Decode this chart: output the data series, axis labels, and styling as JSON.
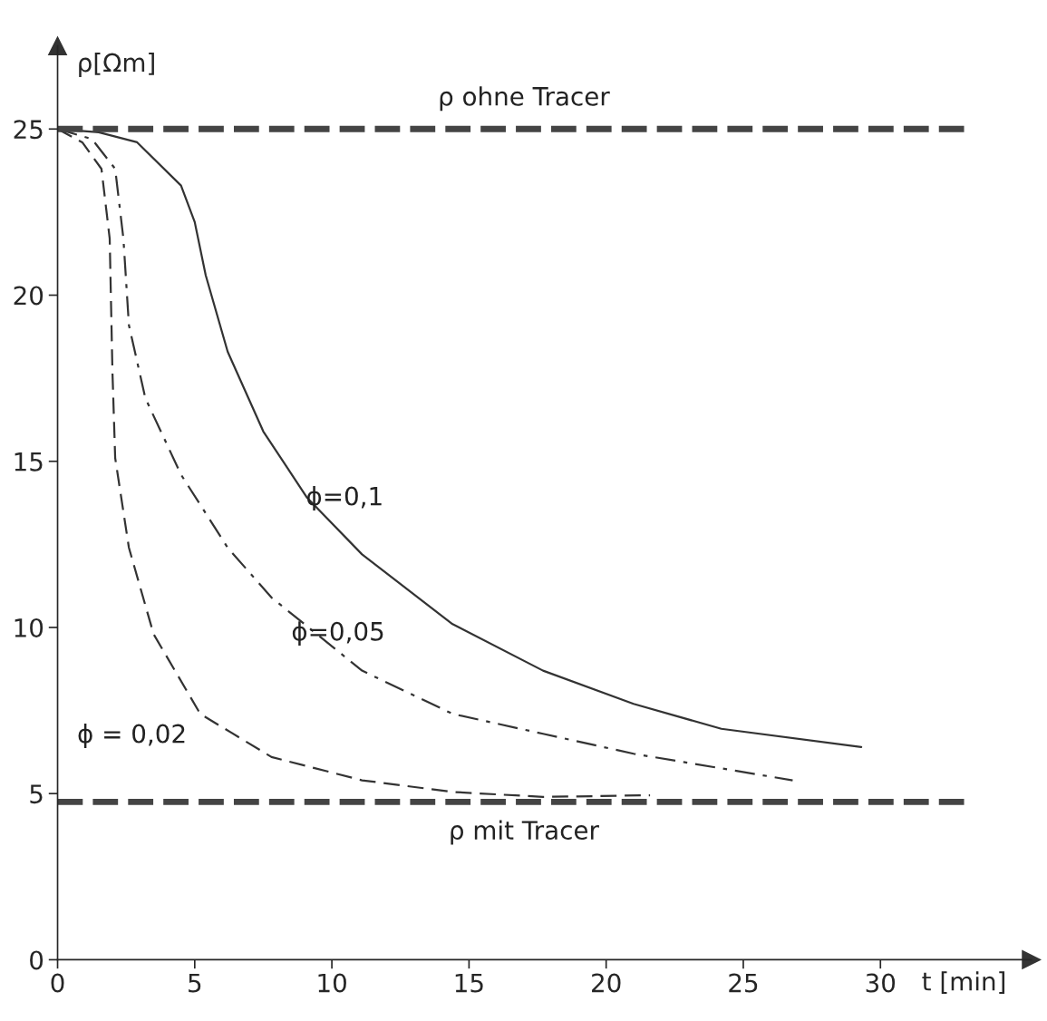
{
  "chart_data": {
    "type": "line",
    "xlabel": "t [min]",
    "ylabel": "ρ[Ωm]",
    "xlim": [
      0,
      35.5
    ],
    "ylim": [
      0,
      27.5
    ],
    "xticks": [
      0,
      5,
      10,
      15,
      20,
      25,
      30
    ],
    "yticks": [
      0,
      5,
      10,
      15,
      20,
      25
    ],
    "grid": false,
    "marker": "none",
    "series": [
      {
        "color": "#333333",
        "line_style": "solid",
        "x": [
          0,
          1.5,
          2.9,
          4.5,
          5.0,
          5.4,
          6.2,
          7.5,
          9.1,
          11.1,
          14.4,
          17.7,
          21.0,
          24.2,
          29.3
        ],
        "values": [
          25,
          24.9,
          24.6,
          23.3,
          22.2,
          20.6,
          18.3,
          15.9,
          13.9,
          12.2,
          10.1,
          8.7,
          7.7,
          6.95,
          6.4
        ]
      },
      {
        "color": "#333333",
        "line_style": "dashdot",
        "x": [
          0,
          1.25,
          2.1,
          2.4,
          2.6,
          3.2,
          4.5,
          6.2,
          7.8,
          11.1,
          14.4,
          17.7,
          21.0,
          26.8
        ],
        "values": [
          25,
          24.7,
          23.8,
          21.7,
          19.1,
          16.9,
          14.6,
          12.4,
          10.9,
          8.7,
          7.4,
          6.8,
          6.2,
          5.4
        ]
      },
      {
        "color": "#333333",
        "line_style": "dashed",
        "x": [
          0,
          0.9,
          1.6,
          1.9,
          2.0,
          2.1,
          2.6,
          3.5,
          5.2,
          7.8,
          11.1,
          14.4,
          17.7,
          21.6
        ],
        "values": [
          25,
          24.6,
          23.8,
          21.7,
          17.7,
          15.1,
          12.4,
          9.8,
          7.4,
          6.1,
          5.4,
          5.05,
          4.9,
          4.95
        ]
      }
    ],
    "ref_lines": [
      {
        "axis": "y",
        "value": 25,
        "label": "ρ ohne Tracer",
        "color": "#444444",
        "line_style": "dashed"
      },
      {
        "axis": "y",
        "value": 4.75,
        "label": "ρ mit Tracer",
        "color": "#444444",
        "line_style": "dashed"
      }
    ],
    "annotations": [
      "ϕ=0,1",
      "ϕ=0,05",
      "ϕ = 0,02"
    ]
  }
}
